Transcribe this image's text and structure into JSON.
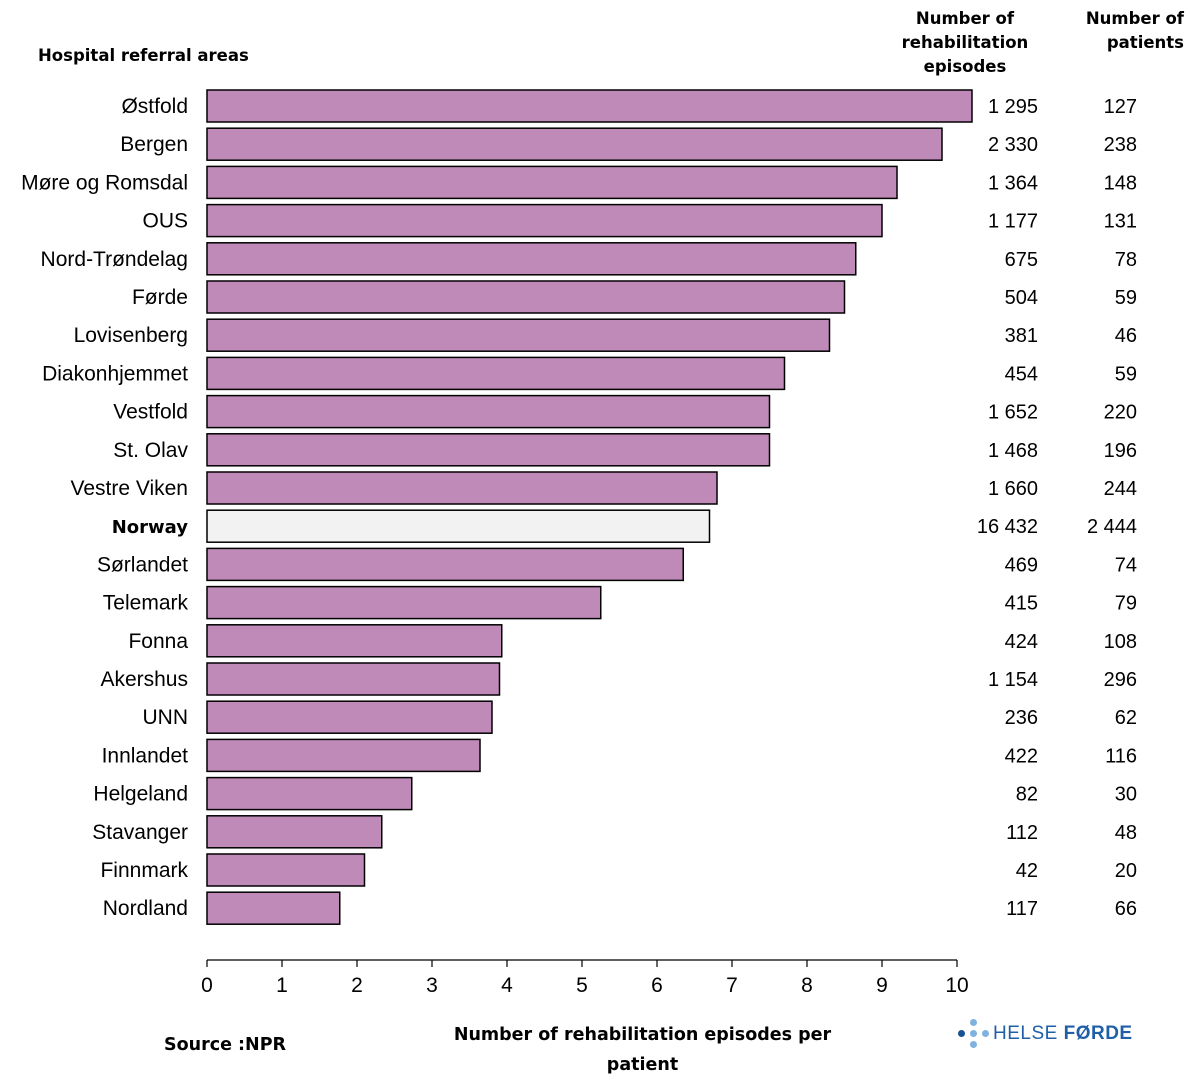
{
  "headers": {
    "areas": "Hospital referral areas",
    "episodes": [
      "Number of",
      "rehabilitation episodes"
    ],
    "patients": [
      "Number of",
      "patients"
    ]
  },
  "footer": {
    "source": "Source :NPR",
    "logo_light": "HELSE ",
    "logo_bold": "FØRDE"
  },
  "colors": {
    "bar": "#bf89b8",
    "highlight_bar": "#f2f2f2",
    "bar_stroke": "#000000",
    "logo_dark": "#1a4f94",
    "logo_light": "#7fb2de"
  },
  "chart_data": {
    "type": "bar",
    "orientation": "horizontal",
    "title": "",
    "xlabel": "Number of rehabilitation episodes per patient",
    "ylabel": "Hospital referral areas",
    "xlim": [
      0,
      10
    ],
    "xticks": [
      0,
      1,
      2,
      3,
      4,
      5,
      6,
      7,
      8,
      9,
      10
    ],
    "grid": false,
    "legend": "none",
    "highlight": "Norway",
    "categories": [
      "Østfold",
      "Bergen",
      "Møre og Romsdal",
      "OUS",
      "Nord-Trøndelag",
      "Førde",
      "Lovisenberg",
      "Diakonhjemmet",
      "Vestfold",
      "St. Olav",
      "Vestre Viken",
      "Norway",
      "Sørlandet",
      "Telemark",
      "Fonna",
      "Akershus",
      "UNN",
      "Innlandet",
      "Helgeland",
      "Stavanger",
      "Finnmark",
      "Nordland"
    ],
    "values": [
      10.2,
      9.8,
      9.2,
      9.0,
      8.65,
      8.5,
      8.3,
      7.7,
      7.5,
      7.5,
      6.8,
      6.7,
      6.35,
      5.25,
      3.93,
      3.9,
      3.8,
      3.64,
      2.73,
      2.33,
      2.1,
      1.77
    ],
    "episodes": [
      "1 295",
      "2 330",
      "1 364",
      "1 177",
      "675",
      "504",
      "381",
      "454",
      "1 652",
      "1 468",
      "1 660",
      "16 432",
      "469",
      "415",
      "424",
      "1 154",
      "236",
      "422",
      "82",
      "112",
      "42",
      "117"
    ],
    "patients": [
      "127",
      "238",
      "148",
      "131",
      "78",
      "59",
      "46",
      "59",
      "220",
      "196",
      "244",
      "2 444",
      "74",
      "79",
      "108",
      "296",
      "62",
      "116",
      "30",
      "48",
      "20",
      "66"
    ]
  }
}
